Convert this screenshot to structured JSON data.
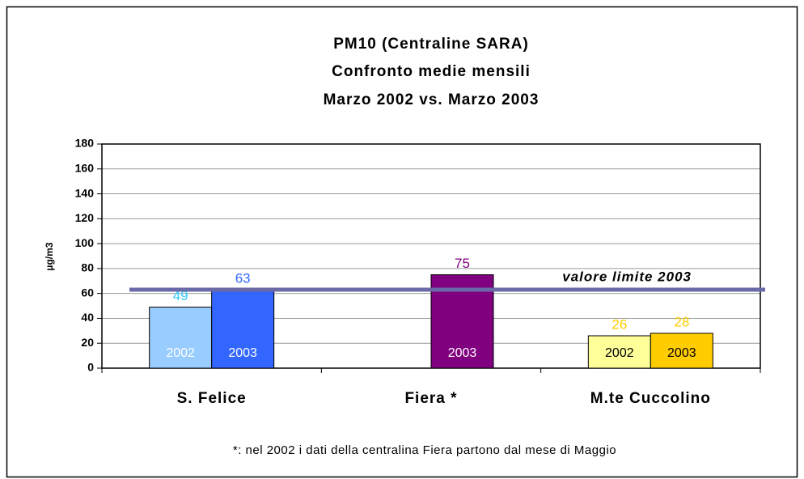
{
  "chart_data": {
    "type": "bar",
    "title": [
      "PM10 (Centraline SARA)",
      "Confronto medie mensili",
      "Marzo 2002 vs. Marzo 2003"
    ],
    "y_label": "µg/m3",
    "categories": [
      "S. Felice",
      "Fiera *",
      "M.te Cuccolino"
    ],
    "series": [
      {
        "name": "2002",
        "values": [
          49,
          null,
          26
        ],
        "colors": [
          "#99ccff",
          null,
          "#ffff99"
        ],
        "label_colors": [
          "#33ccff",
          null,
          "#ffcc00"
        ]
      },
      {
        "name": "2003",
        "values": [
          63,
          75,
          28
        ],
        "colors": [
          "#3366ff",
          "#800080",
          "#ffcc00"
        ],
        "label_colors": [
          "#3366ff",
          "#800080",
          "#ffcc00"
        ]
      }
    ],
    "ylim": [
      0,
      180
    ],
    "yticks": [
      0,
      20,
      40,
      60,
      80,
      100,
      120,
      140,
      160,
      180
    ],
    "grid": true,
    "reference_line": {
      "value": 63,
      "label": "valore limite 2003",
      "color": "#6a6aa8"
    },
    "footnote": "*: nel 2002 i dati della centralina Fiera partono dal mese di Maggio"
  }
}
